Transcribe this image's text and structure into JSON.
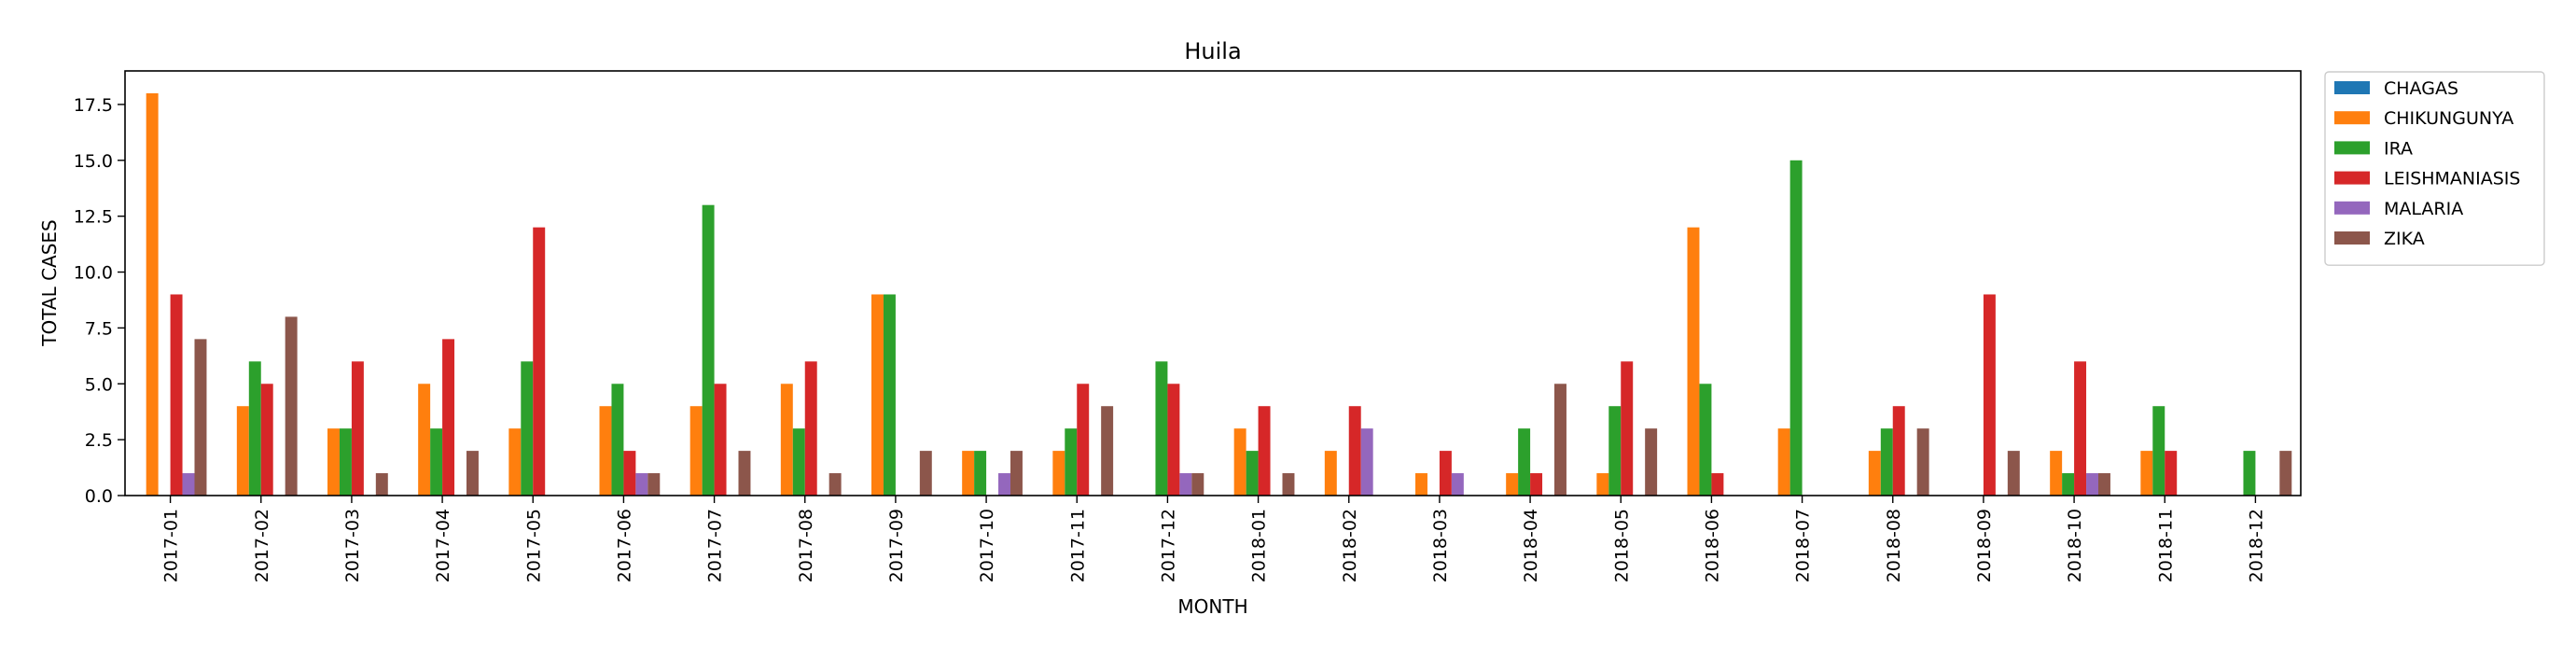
{
  "chart_data": {
    "type": "bar",
    "title": "Huila",
    "xlabel": "MONTH",
    "ylabel": "TOTAL CASES",
    "ylim": [
      0,
      19
    ],
    "yticks": [
      "0.0",
      "2.5",
      "5.0",
      "7.5",
      "10.0",
      "12.5",
      "15.0",
      "17.5"
    ],
    "ytick_values": [
      0,
      2.5,
      5,
      7.5,
      10,
      12.5,
      15,
      17.5
    ],
    "legend_position": "outside-top-right",
    "categories": [
      "2017-01",
      "2017-02",
      "2017-03",
      "2017-04",
      "2017-05",
      "2017-06",
      "2017-07",
      "2017-08",
      "2017-09",
      "2017-10",
      "2017-11",
      "2017-12",
      "2018-01",
      "2018-02",
      "2018-03",
      "2018-04",
      "2018-05",
      "2018-06",
      "2018-07",
      "2018-08",
      "2018-09",
      "2018-10",
      "2018-11",
      "2018-12"
    ],
    "series": [
      {
        "name": "CHAGAS",
        "color": "#1f77b4",
        "values": [
          0,
          0,
          0,
          0,
          0,
          0,
          0,
          0,
          0,
          0,
          0,
          0,
          0,
          0,
          0,
          0,
          0,
          0,
          0,
          0,
          0,
          0,
          0,
          0
        ]
      },
      {
        "name": "CHIKUNGUNYA",
        "color": "#ff7f0e",
        "values": [
          18,
          4,
          3,
          5,
          3,
          4,
          4,
          5,
          9,
          2,
          2,
          0,
          3,
          2,
          1,
          1,
          1,
          12,
          3,
          2,
          0,
          2,
          2,
          0
        ]
      },
      {
        "name": "IRA",
        "color": "#2ca02c",
        "values": [
          0,
          6,
          3,
          3,
          6,
          5,
          13,
          3,
          9,
          2,
          3,
          6,
          2,
          0,
          0,
          3,
          4,
          5,
          15,
          3,
          0,
          1,
          4,
          2
        ]
      },
      {
        "name": "LEISHMANIASIS",
        "color": "#d62728",
        "values": [
          9,
          5,
          6,
          7,
          12,
          2,
          5,
          6,
          0,
          0,
          5,
          5,
          4,
          4,
          2,
          1,
          6,
          1,
          0,
          4,
          9,
          6,
          2,
          0
        ]
      },
      {
        "name": "MALARIA",
        "color": "#9467bd",
        "values": [
          1,
          0,
          0,
          0,
          0,
          1,
          0,
          0,
          0,
          1,
          0,
          1,
          0,
          3,
          1,
          0,
          0,
          0,
          0,
          0,
          0,
          1,
          0,
          0
        ]
      },
      {
        "name": "ZIKA",
        "color": "#8c564b",
        "values": [
          7,
          8,
          1,
          2,
          0,
          1,
          2,
          1,
          2,
          2,
          4,
          1,
          1,
          0,
          0,
          5,
          3,
          0,
          0,
          3,
          2,
          1,
          0,
          2
        ]
      }
    ]
  }
}
